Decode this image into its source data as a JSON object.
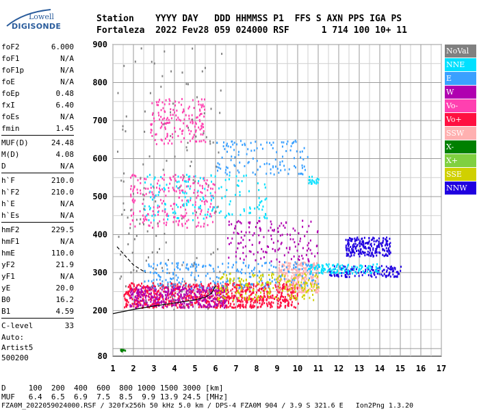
{
  "logo": {
    "line1": "Lowell",
    "line2": "DIGISONDE"
  },
  "header": {
    "line1": "Station    YYYY DAY   DDD HHMMSS P1  FFS S AXN PPS IGA PS",
    "line2": "Fortaleza  2022 Fev28 059 024000 RSF      1 714 100 10+ 11"
  },
  "params": {
    "group1": [
      {
        "k": "foF2",
        "v": "6.000"
      },
      {
        "k": "foF1",
        "v": "N/A"
      },
      {
        "k": "foF1p",
        "v": "N/A"
      },
      {
        "k": "foE",
        "v": "N/A"
      },
      {
        "k": "foEp",
        "v": "0.48"
      },
      {
        "k": "fxI",
        "v": "6.40"
      },
      {
        "k": "foEs",
        "v": "N/A"
      },
      {
        "k": "fmin",
        "v": "1.45"
      }
    ],
    "group2": [
      {
        "k": "MUF(D)",
        "v": "24.48"
      },
      {
        "k": "M(D)",
        "v": "4.08"
      },
      {
        "k": "D",
        "v": "N/A"
      }
    ],
    "group3": [
      {
        "k": "h`F",
        "v": "210.0"
      },
      {
        "k": "h`F2",
        "v": "210.0"
      },
      {
        "k": "h`E",
        "v": "N/A"
      },
      {
        "k": "h`Es",
        "v": "N/A"
      }
    ],
    "group4": [
      {
        "k": "hmF2",
        "v": "229.5"
      },
      {
        "k": "hmF1",
        "v": "N/A"
      },
      {
        "k": "hmE",
        "v": "110.0"
      },
      {
        "k": "yF2",
        "v": "21.9"
      },
      {
        "k": "yF1",
        "v": "N/A"
      },
      {
        "k": "yE",
        "v": "20.0"
      },
      {
        "k": "B0",
        "v": "16.2"
      },
      {
        "k": "B1",
        "v": "4.59"
      }
    ],
    "group5": [
      {
        "k": "C-level",
        "v": "33"
      }
    ]
  },
  "auto": {
    "l1": "Auto:",
    "l2": "Artist5",
    "l3": "500200"
  },
  "legend": [
    {
      "label": "NoVal",
      "color": "#808080"
    },
    {
      "label": "NNE",
      "color": "#00e0ff"
    },
    {
      "label": "E",
      "color": "#3aa0ff"
    },
    {
      "label": "W",
      "color": "#b000b0"
    },
    {
      "label": "Vo-",
      "color": "#ff40b0"
    },
    {
      "label": "Vo+",
      "color": "#ff1040"
    },
    {
      "label": "SSW",
      "color": "#ffb0b0"
    },
    {
      "label": "X-",
      "color": "#008000"
    },
    {
      "label": "X+",
      "color": "#80d040"
    },
    {
      "label": "SSE",
      "color": "#d0d000"
    },
    {
      "label": "NNW",
      "color": "#2000e0"
    }
  ],
  "bottom": {
    "line1": "D     100  200  400  600  800 1000 1500 3000 [km]",
    "line2": "MUF   6.4  6.5  6.9  7.5  8.5  9.9 13.9 24.5 [MHz]",
    "line3": "FZA0M_2022059024000.RSF / 320fx256h 50 kHz 5.0 km / DPS-4 FZA0M 904 / 3.9 S 321.6 E   Ion2Png 1.3.20"
  },
  "chart_data": {
    "type": "scatter",
    "xlim": [
      1,
      17
    ],
    "ylim": [
      80,
      900
    ],
    "xticks": [
      1,
      2,
      3,
      4,
      5,
      6,
      7,
      8,
      9,
      10,
      11,
      12,
      13,
      14,
      15,
      16,
      17
    ],
    "yticks": [
      80,
      200,
      300,
      400,
      500,
      600,
      700,
      800,
      900
    ],
    "grid": true,
    "trace_f2": [
      [
        1.0,
        192
      ],
      [
        2.0,
        203
      ],
      [
        3.0,
        212
      ],
      [
        4.0,
        220
      ],
      [
        5.0,
        228
      ],
      [
        5.5,
        235
      ],
      [
        5.8,
        245
      ],
      [
        6.0,
        265
      ]
    ],
    "trace_dashed": [
      [
        1.2,
        368
      ],
      [
        2.0,
        320
      ],
      [
        2.6,
        300
      ]
    ],
    "clusters": [
      {
        "color": "#ff1040",
        "x0": 1.5,
        "x1": 10.0,
        "y0": 210,
        "y1": 275,
        "n": 900
      },
      {
        "color": "#b000b0",
        "x0": 1.8,
        "x1": 6.5,
        "y0": 210,
        "y1": 265,
        "n": 350
      },
      {
        "color": "#ffb0b0",
        "x0": 9.0,
        "x1": 11.0,
        "y0": 250,
        "y1": 330,
        "n": 250
      },
      {
        "color": "#3aa0ff",
        "x0": 2.5,
        "x1": 11.0,
        "y0": 260,
        "y1": 330,
        "n": 250
      },
      {
        "color": "#2000e0",
        "x0": 12.3,
        "x1": 14.5,
        "y0": 345,
        "y1": 395,
        "n": 220
      },
      {
        "color": "#2000e0",
        "x0": 11.5,
        "x1": 15.0,
        "y0": 290,
        "y1": 320,
        "n": 140
      },
      {
        "color": "#00e0ff",
        "x0": 10.5,
        "x1": 14.0,
        "y0": 300,
        "y1": 325,
        "n": 120
      },
      {
        "color": "#d0d000",
        "x0": 6.0,
        "x1": 11.0,
        "y0": 230,
        "y1": 300,
        "n": 200
      },
      {
        "color": "#ff40b0",
        "x0": 1.8,
        "x1": 6.0,
        "y0": 420,
        "y1": 560,
        "n": 220
      },
      {
        "color": "#00e0ff",
        "x0": 2.5,
        "x1": 8.5,
        "y0": 440,
        "y1": 560,
        "n": 160
      },
      {
        "color": "#ff40b0",
        "x0": 2.8,
        "x1": 5.5,
        "y0": 640,
        "y1": 760,
        "n": 160
      },
      {
        "color": "#3aa0ff",
        "x0": 6.0,
        "x1": 10.5,
        "y0": 560,
        "y1": 650,
        "n": 120
      },
      {
        "color": "#b000b0",
        "x0": 6.5,
        "x1": 11.0,
        "y0": 330,
        "y1": 440,
        "n": 150
      },
      {
        "color": "#00e0ff",
        "x0": 10.5,
        "x1": 11.0,
        "y0": 535,
        "y1": 555,
        "n": 20
      },
      {
        "color": "#008000",
        "x0": 1.3,
        "x1": 1.6,
        "y0": 95,
        "y1": 100,
        "n": 10
      },
      {
        "color": "#808080",
        "x0": 1.2,
        "x1": 6.5,
        "y0": 200,
        "y1": 900,
        "n": 140
      }
    ]
  }
}
